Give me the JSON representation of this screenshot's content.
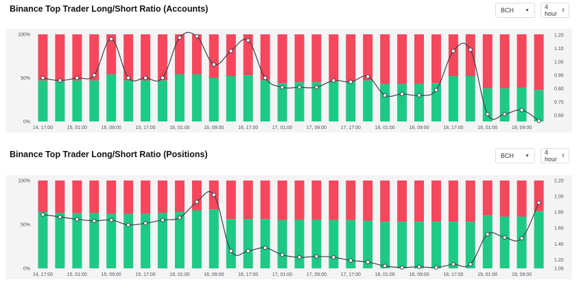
{
  "controls": [
    {
      "symbol": "BCH",
      "interval": "4 hour"
    },
    {
      "symbol": "BCH",
      "interval": "4 hour"
    }
  ],
  "icons": {
    "dropdown": "caret-down-icon",
    "stepper": "up-down-chevron-icon"
  },
  "colors": {
    "long": "#1ec986",
    "short": "#f5485d",
    "line": "#3a3f47",
    "marker_fill": "#ffffff"
  },
  "chart_data": [
    {
      "type": "bar",
      "title": "Binance Top Trader Long/Short Ratio (Accounts)",
      "stacked": true,
      "left_axis": {
        "ticks": [
          "0%",
          "50%",
          "100%"
        ],
        "range": [
          0,
          100
        ]
      },
      "right_axis": {
        "ticks": [
          "0.60",
          "0.70",
          "0.80",
          "0.90",
          "1.00",
          "1.10",
          "1.20"
        ],
        "range": [
          0.555,
          1.205
        ]
      },
      "x_ticks": [
        {
          "index": 0,
          "label": "14, 17:00"
        },
        {
          "index": 2,
          "label": "15, 01:00"
        },
        {
          "index": 4,
          "label": "15, 09:00"
        },
        {
          "index": 6,
          "label": "15, 17:00"
        },
        {
          "index": 8,
          "label": "16, 01:00"
        },
        {
          "index": 10,
          "label": "16, 09:00"
        },
        {
          "index": 12,
          "label": "16, 17:00"
        },
        {
          "index": 14,
          "label": "17, 01:00"
        },
        {
          "index": 16,
          "label": "17, 09:00"
        },
        {
          "index": 18,
          "label": "17, 17:00"
        },
        {
          "index": 20,
          "label": "18, 01:00"
        },
        {
          "index": 22,
          "label": "18, 09:00"
        },
        {
          "index": 24,
          "label": "18, 17:00"
        },
        {
          "index": 26,
          "label": "19, 01:00"
        },
        {
          "index": 28,
          "label": "19, 09:00"
        }
      ],
      "long_percent": [
        47,
        46,
        47,
        47,
        54,
        47,
        47,
        47,
        54,
        54,
        50,
        52,
        53,
        47,
        44,
        45,
        45,
        46,
        46,
        47,
        43,
        43,
        43,
        44,
        52,
        52,
        38,
        38,
        39,
        36
      ],
      "ratio": [
        0.88,
        0.86,
        0.88,
        0.9,
        1.17,
        0.88,
        0.88,
        0.88,
        1.18,
        1.19,
        0.98,
        1.08,
        1.16,
        0.88,
        0.81,
        0.81,
        0.81,
        0.86,
        0.85,
        0.89,
        0.75,
        0.76,
        0.75,
        0.79,
        1.08,
        1.09,
        0.61,
        0.61,
        0.64,
        0.56
      ]
    },
    {
      "type": "bar",
      "title": "Binance Top Trader Long/Short Ratio (Positions)",
      "stacked": true,
      "left_axis": {
        "ticks": [
          "0%",
          "50%",
          "100%"
        ],
        "range": [
          0,
          100
        ]
      },
      "right_axis": {
        "ticks": [
          "1.09",
          "1.20",
          "1.40",
          "1.60",
          "1.80",
          "2.00",
          "2.20"
        ],
        "range": [
          1.09,
          2.2
        ]
      },
      "x_ticks": [
        {
          "index": 0,
          "label": "14, 17:00"
        },
        {
          "index": 2,
          "label": "15, 01:00"
        },
        {
          "index": 4,
          "label": "15, 09:00"
        },
        {
          "index": 6,
          "label": "15, 17:00"
        },
        {
          "index": 8,
          "label": "16, 01:00"
        },
        {
          "index": 10,
          "label": "16, 09:00"
        },
        {
          "index": 12,
          "label": "16, 17:00"
        },
        {
          "index": 14,
          "label": "17, 01:00"
        },
        {
          "index": 16,
          "label": "17, 09:00"
        },
        {
          "index": 18,
          "label": "17, 17:00"
        },
        {
          "index": 20,
          "label": "18, 01:00"
        },
        {
          "index": 22,
          "label": "18, 09:00"
        },
        {
          "index": 24,
          "label": "18, 17:00"
        },
        {
          "index": 26,
          "label": "19, 01:00"
        },
        {
          "index": 28,
          "label": "19, 09:00"
        }
      ],
      "long_percent": [
        64,
        63,
        63,
        63,
        62,
        62,
        62,
        63,
        64,
        66,
        67,
        56,
        56,
        56,
        55,
        55,
        55,
        55,
        55,
        54,
        53,
        53,
        53,
        53,
        53,
        53,
        60,
        59,
        59,
        65
      ],
      "ratio": [
        1.77,
        1.74,
        1.71,
        1.69,
        1.7,
        1.64,
        1.66,
        1.7,
        1.73,
        1.93,
        2.02,
        1.31,
        1.31,
        1.35,
        1.26,
        1.23,
        1.24,
        1.23,
        1.19,
        1.17,
        1.12,
        1.1,
        1.11,
        1.1,
        1.14,
        1.14,
        1.52,
        1.48,
        1.47,
        1.92
      ]
    }
  ]
}
